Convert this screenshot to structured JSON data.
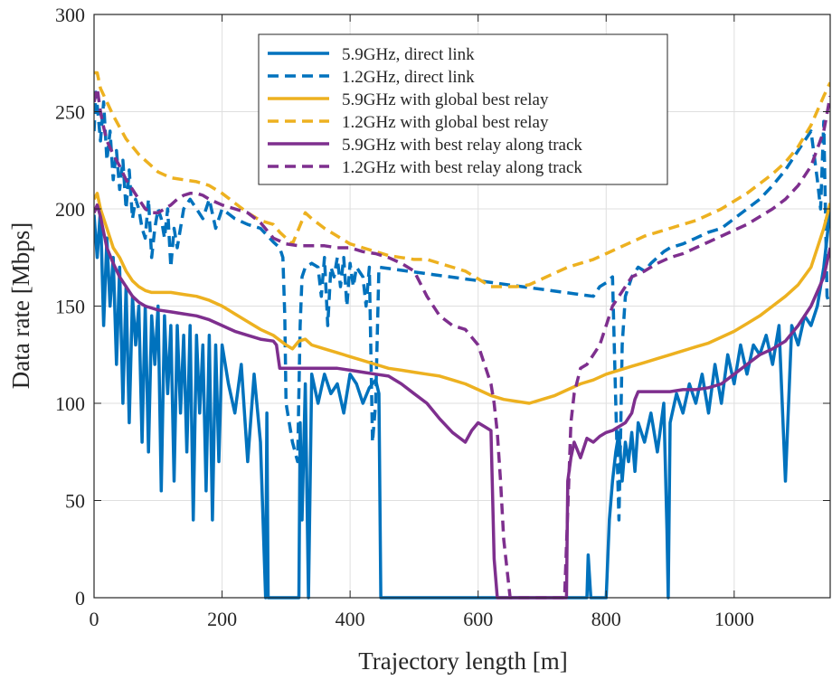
{
  "chart_data": {
    "type": "line",
    "xlabel": "Trajectory length [m]",
    "ylabel": "Data rate [Mbps]",
    "xlim": [
      0,
      1150
    ],
    "ylim": [
      0,
      300
    ],
    "xticks": [
      0,
      200,
      400,
      600,
      800,
      1000
    ],
    "yticks": [
      0,
      50,
      100,
      150,
      200,
      250,
      300
    ],
    "grid": true,
    "legend_position": "top-center",
    "series": [
      {
        "name": "5.9GHz, direct link",
        "color": "#0072BD",
        "style": "solid",
        "x": [
          0,
          5,
          10,
          15,
          20,
          25,
          30,
          35,
          40,
          45,
          50,
          55,
          60,
          65,
          70,
          75,
          80,
          85,
          90,
          95,
          100,
          105,
          110,
          115,
          120,
          125,
          130,
          135,
          140,
          145,
          150,
          155,
          160,
          165,
          170,
          175,
          180,
          185,
          190,
          195,
          200,
          210,
          220,
          230,
          240,
          250,
          260,
          268,
          270,
          272,
          280,
          290,
          300,
          315,
          320,
          322,
          325,
          330,
          335,
          340,
          350,
          360,
          370,
          380,
          390,
          400,
          410,
          420,
          430,
          440,
          445,
          448,
          460,
          600,
          700,
          770,
          772,
          776,
          780,
          800,
          805,
          810,
          815,
          820,
          825,
          830,
          835,
          840,
          845,
          850,
          860,
          870,
          880,
          890,
          895,
          897,
          900,
          910,
          920,
          930,
          940,
          950,
          960,
          970,
          980,
          990,
          1000,
          1010,
          1020,
          1030,
          1040,
          1050,
          1060,
          1070,
          1080,
          1090,
          1100,
          1110,
          1120,
          1130,
          1140,
          1150
        ],
        "y": [
          197,
          175,
          200,
          140,
          185,
          150,
          175,
          120,
          170,
          100,
          160,
          90,
          155,
          130,
          150,
          80,
          150,
          75,
          145,
          120,
          150,
          55,
          145,
          105,
          140,
          60,
          140,
          95,
          135,
          75,
          140,
          40,
          135,
          95,
          130,
          55,
          135,
          40,
          130,
          70,
          130,
          110,
          95,
          120,
          70,
          115,
          80,
          0,
          95,
          0,
          0,
          0,
          0,
          0,
          0,
          90,
          40,
          110,
          0,
          115,
          100,
          115,
          105,
          110,
          95,
          115,
          110,
          100,
          108,
          112,
          105,
          0,
          0,
          0,
          0,
          0,
          22,
          0,
          0,
          0,
          40,
          60,
          75,
          85,
          60,
          80,
          70,
          85,
          65,
          90,
          80,
          95,
          75,
          100,
          35,
          0,
          90,
          105,
          95,
          110,
          100,
          115,
          95,
          120,
          100,
          125,
          110,
          130,
          115,
          130,
          125,
          135,
          120,
          140,
          60,
          140,
          130,
          145,
          140,
          150,
          170,
          200
        ]
      },
      {
        "name": "1.2GHz, direct link",
        "color": "#0072BD",
        "style": "dashed",
        "x": [
          0,
          3,
          6,
          10,
          15,
          20,
          25,
          30,
          35,
          40,
          45,
          50,
          55,
          60,
          65,
          70,
          75,
          80,
          85,
          90,
          95,
          100,
          105,
          110,
          115,
          120,
          125,
          130,
          140,
          150,
          160,
          170,
          180,
          190,
          200,
          220,
          240,
          260,
          280,
          290,
          295,
          298,
          300,
          310,
          318,
          322,
          325,
          330,
          340,
          350,
          355,
          360,
          365,
          370,
          375,
          380,
          385,
          390,
          395,
          400,
          405,
          410,
          420,
          425,
          430,
          435,
          440,
          445,
          780,
          790,
          800,
          810,
          815,
          820,
          823,
          825,
          830,
          840,
          850,
          860,
          870,
          880,
          890,
          900,
          920,
          940,
          960,
          980,
          1000,
          1020,
          1040,
          1060,
          1080,
          1100,
          1120,
          1130,
          1135,
          1140,
          1145,
          1150
        ],
        "y": [
          240,
          260,
          250,
          235,
          255,
          225,
          240,
          215,
          230,
          210,
          225,
          200,
          220,
          195,
          205,
          200,
          190,
          185,
          205,
          175,
          190,
          200,
          195,
          185,
          200,
          170,
          190,
          180,
          200,
          205,
          200,
          195,
          205,
          190,
          200,
          195,
          192,
          190,
          183,
          180,
          175,
          145,
          100,
          80,
          70,
          140,
          165,
          170,
          172,
          170,
          155,
          175,
          140,
          170,
          165,
          175,
          160,
          175,
          150,
          172,
          160,
          170,
          165,
          150,
          170,
          80,
          100,
          170,
          155,
          160,
          162,
          165,
          100,
          40,
          90,
          130,
          155,
          165,
          170,
          168,
          172,
          175,
          178,
          180,
          182,
          185,
          188,
          190,
          195,
          200,
          205,
          212,
          220,
          230,
          240,
          215,
          200,
          245,
          155,
          150
        ]
      },
      {
        "name": "5.9GHz with global best relay",
        "color": "#EDB120",
        "style": "solid",
        "x": [
          0,
          5,
          10,
          20,
          30,
          40,
          50,
          60,
          70,
          80,
          90,
          100,
          120,
          140,
          160,
          180,
          200,
          220,
          240,
          260,
          280,
          300,
          310,
          320,
          330,
          340,
          360,
          380,
          400,
          420,
          440,
          460,
          480,
          500,
          520,
          540,
          560,
          580,
          600,
          620,
          640,
          660,
          680,
          700,
          720,
          740,
          760,
          780,
          800,
          820,
          840,
          860,
          880,
          900,
          920,
          940,
          960,
          980,
          1000,
          1020,
          1040,
          1060,
          1080,
          1100,
          1120,
          1140,
          1150
        ],
        "y": [
          205,
          208,
          200,
          190,
          180,
          175,
          168,
          163,
          160,
          158,
          157,
          157,
          157,
          156,
          155,
          153,
          150,
          146,
          142,
          138,
          135,
          130,
          128,
          132,
          133,
          130,
          128,
          126,
          124,
          122,
          120,
          118,
          117,
          116,
          115,
          114,
          112,
          110,
          107,
          104,
          102,
          101,
          100,
          102,
          104,
          107,
          110,
          112,
          115,
          117,
          119,
          121,
          123,
          125,
          127,
          129,
          131,
          134,
          137,
          141,
          145,
          150,
          155,
          161,
          170,
          190,
          203
        ]
      },
      {
        "name": "1.2GHz with global best relay",
        "color": "#EDB120",
        "style": "dashed",
        "x": [
          0,
          5,
          10,
          20,
          30,
          40,
          50,
          60,
          70,
          80,
          90,
          100,
          120,
          140,
          160,
          180,
          200,
          220,
          240,
          260,
          280,
          290,
          300,
          310,
          320,
          330,
          340,
          360,
          380,
          400,
          420,
          440,
          460,
          480,
          500,
          520,
          540,
          560,
          580,
          600,
          620,
          640,
          660,
          680,
          700,
          720,
          740,
          760,
          780,
          800,
          820,
          840,
          860,
          880,
          900,
          920,
          940,
          960,
          980,
          1000,
          1020,
          1040,
          1060,
          1080,
          1100,
          1120,
          1140,
          1150
        ],
        "y": [
          270,
          270,
          262,
          255,
          248,
          242,
          236,
          232,
          228,
          225,
          222,
          219,
          216,
          215,
          214,
          212,
          208,
          203,
          198,
          194,
          192,
          188,
          185,
          182,
          190,
          198,
          195,
          190,
          186,
          182,
          180,
          178,
          176,
          175,
          174,
          174,
          172,
          170,
          168,
          164,
          160,
          160,
          160,
          161,
          164,
          167,
          170,
          172,
          174,
          177,
          180,
          183,
          186,
          188,
          190,
          192,
          194,
          197,
          200,
          204,
          208,
          213,
          218,
          224,
          232,
          243,
          258,
          265
        ]
      },
      {
        "name": "5.9GHz with best relay along track",
        "color": "#7E2F8E",
        "style": "solid",
        "x": [
          0,
          5,
          10,
          15,
          20,
          30,
          40,
          50,
          60,
          70,
          80,
          100,
          120,
          140,
          160,
          180,
          200,
          220,
          240,
          260,
          280,
          285,
          290,
          300,
          320,
          340,
          360,
          380,
          400,
          420,
          440,
          460,
          480,
          500,
          520,
          540,
          560,
          580,
          590,
          600,
          610,
          620,
          622,
          625,
          630,
          700,
          735,
          738,
          740,
          745,
          750,
          760,
          770,
          780,
          790,
          800,
          810,
          820,
          830,
          840,
          845,
          850,
          860,
          880,
          900,
          920,
          940,
          960,
          980,
          1000,
          1020,
          1040,
          1060,
          1080,
          1100,
          1120,
          1140,
          1150
        ],
        "y": [
          198,
          202,
          196,
          188,
          180,
          172,
          165,
          160,
          155,
          152,
          150,
          148,
          147,
          146,
          145,
          143,
          140,
          137,
          135,
          133,
          132,
          130,
          118,
          118,
          118,
          118,
          118,
          118,
          117,
          116,
          115,
          114,
          110,
          105,
          100,
          92,
          85,
          80,
          86,
          90,
          88,
          86,
          60,
          20,
          0,
          0,
          0,
          0,
          60,
          72,
          80,
          72,
          82,
          80,
          83,
          85,
          86,
          88,
          90,
          95,
          102,
          106,
          106,
          106,
          106,
          107,
          107,
          108,
          110,
          115,
          120,
          125,
          128,
          132,
          140,
          150,
          165,
          180
        ]
      },
      {
        "name": "1.2GHz with best relay along track",
        "color": "#7E2F8E",
        "style": "dashed",
        "x": [
          0,
          5,
          10,
          15,
          20,
          30,
          40,
          50,
          60,
          70,
          80,
          90,
          100,
          110,
          120,
          130,
          140,
          150,
          160,
          170,
          180,
          200,
          220,
          240,
          260,
          280,
          300,
          320,
          340,
          360,
          380,
          400,
          420,
          440,
          460,
          480,
          500,
          520,
          540,
          560,
          580,
          600,
          610,
          620,
          625,
          630,
          635,
          640,
          650,
          660,
          670,
          680,
          690,
          700,
          710,
          720,
          730,
          735,
          740,
          745,
          750,
          760,
          770,
          780,
          790,
          800,
          810,
          820,
          830,
          840,
          860,
          880,
          900,
          920,
          940,
          960,
          980,
          1000,
          1020,
          1040,
          1060,
          1080,
          1100,
          1120,
          1140,
          1150
        ],
        "y": [
          255,
          262,
          250,
          242,
          235,
          228,
          222,
          215,
          210,
          205,
          200,
          198,
          198,
          200,
          202,
          205,
          207,
          208,
          208,
          207,
          205,
          202,
          200,
          198,
          193,
          185,
          182,
          181,
          181,
          181,
          180,
          180,
          178,
          177,
          175,
          172,
          168,
          155,
          145,
          140,
          138,
          130,
          120,
          110,
          100,
          85,
          60,
          30,
          0,
          0,
          0,
          0,
          0,
          0,
          0,
          0,
          0,
          0,
          45,
          90,
          105,
          118,
          120,
          125,
          130,
          140,
          150,
          155,
          160,
          165,
          168,
          172,
          175,
          177,
          180,
          183,
          186,
          189,
          192,
          196,
          200,
          205,
          212,
          222,
          240,
          258
        ]
      }
    ]
  }
}
